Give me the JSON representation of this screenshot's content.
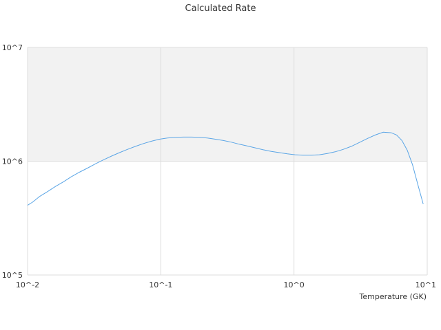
{
  "chart_data": {
    "type": "line",
    "title": "Calculated Rate",
    "xlabel": "Temperature (GK)",
    "ylabel": "",
    "x_scale": "log",
    "y_scale": "log",
    "xlim": [
      0.01,
      10
    ],
    "ylim": [
      100000,
      10000000
    ],
    "x_tick_labels": [
      "10^-2",
      "10^-1",
      "10^0",
      "10^1"
    ],
    "y_tick_labels": [
      "10^5",
      "10^6",
      "10^7"
    ],
    "grid": true,
    "legend": "none",
    "band": {
      "y_from": 1000000,
      "y_to": 10000000,
      "color": "#f2f2f2"
    },
    "series": [
      {
        "color": "#5aa5e6",
        "x": [
          0.01,
          0.011,
          0.0123,
          0.0141,
          0.0162,
          0.0186,
          0.0213,
          0.0245,
          0.0282,
          0.0324,
          0.0372,
          0.0427,
          0.049,
          0.0562,
          0.0646,
          0.0741,
          0.0851,
          0.0977,
          0.112,
          0.129,
          0.148,
          0.17,
          0.195,
          0.224,
          0.257,
          0.295,
          0.339,
          0.389,
          0.447,
          0.513,
          0.589,
          0.676,
          0.776,
          0.891,
          1.02,
          1.17,
          1.35,
          1.55,
          1.78,
          2.04,
          2.34,
          2.69,
          3.09,
          3.55,
          4.07,
          4.68,
          5.37,
          5.89,
          6.46,
          7.08,
          7.76,
          8.51,
          9.33
        ],
        "y": [
          410000,
          440000,
          490000,
          540000,
          600000,
          660000,
          730000,
          800000,
          870000,
          950000,
          1030000,
          1110000,
          1190000,
          1270000,
          1350000,
          1430000,
          1500000,
          1560000,
          1600000,
          1620000,
          1630000,
          1630000,
          1620000,
          1600000,
          1560000,
          1520000,
          1470000,
          1410000,
          1360000,
          1310000,
          1260000,
          1220000,
          1190000,
          1160000,
          1140000,
          1130000,
          1130000,
          1140000,
          1170000,
          1210000,
          1270000,
          1350000,
          1460000,
          1580000,
          1700000,
          1800000,
          1780000,
          1700000,
          1520000,
          1250000,
          930000,
          620000,
          420000
        ]
      }
    ]
  }
}
